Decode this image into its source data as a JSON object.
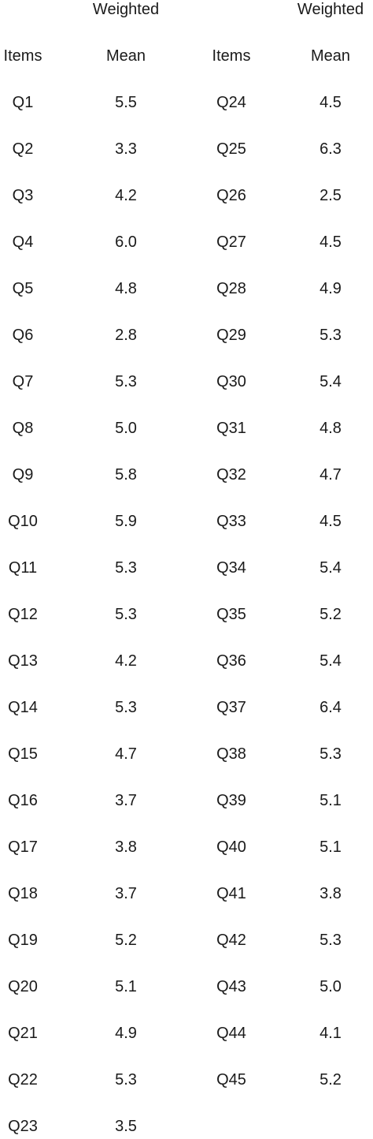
{
  "table": {
    "headers": {
      "items_1": "Items",
      "weighted_1": "Weighted",
      "mean_1": "Mean",
      "items_2": "Items",
      "weighted_2": "Weighted",
      "mean_2": "Mean"
    },
    "left_rows": [
      {
        "item": "Q1",
        "mean": "5.5"
      },
      {
        "item": "Q2",
        "mean": "3.3"
      },
      {
        "item": "Q3",
        "mean": "4.2"
      },
      {
        "item": "Q4",
        "mean": "6.0"
      },
      {
        "item": "Q5",
        "mean": "4.8"
      },
      {
        "item": "Q6",
        "mean": "2.8"
      },
      {
        "item": "Q7",
        "mean": "5.3"
      },
      {
        "item": "Q8",
        "mean": "5.0"
      },
      {
        "item": "Q9",
        "mean": "5.8"
      },
      {
        "item": "Q10",
        "mean": "5.9"
      },
      {
        "item": "Q11",
        "mean": "5.3"
      },
      {
        "item": "Q12",
        "mean": "5.3"
      },
      {
        "item": "Q13",
        "mean": "4.2"
      },
      {
        "item": "Q14",
        "mean": "5.3"
      },
      {
        "item": "Q15",
        "mean": "4.7"
      },
      {
        "item": "Q16",
        "mean": "3.7"
      },
      {
        "item": "Q17",
        "mean": "3.8"
      },
      {
        "item": "Q18",
        "mean": "3.7"
      },
      {
        "item": "Q19",
        "mean": "5.2"
      },
      {
        "item": "Q20",
        "mean": "5.1"
      },
      {
        "item": "Q21",
        "mean": "4.9"
      },
      {
        "item": "Q22",
        "mean": "5.3"
      },
      {
        "item": "Q23",
        "mean": "3.5"
      }
    ],
    "right_rows": [
      {
        "item": "Q24",
        "mean": "4.5"
      },
      {
        "item": "Q25",
        "mean": "6.3"
      },
      {
        "item": "Q26",
        "mean": "2.5"
      },
      {
        "item": "Q27",
        "mean": "4.5"
      },
      {
        "item": "Q28",
        "mean": "4.9"
      },
      {
        "item": "Q29",
        "mean": "5.3"
      },
      {
        "item": "Q30",
        "mean": "5.4"
      },
      {
        "item": "Q31",
        "mean": "4.8"
      },
      {
        "item": "Q32",
        "mean": "4.7"
      },
      {
        "item": "Q33",
        "mean": "4.5"
      },
      {
        "item": "Q34",
        "mean": "5.4"
      },
      {
        "item": "Q35",
        "mean": "5.2"
      },
      {
        "item": "Q36",
        "mean": "5.4"
      },
      {
        "item": "Q37",
        "mean": "6.4"
      },
      {
        "item": "Q38",
        "mean": "5.3"
      },
      {
        "item": "Q39",
        "mean": "5.1"
      },
      {
        "item": "Q40",
        "mean": "5.1"
      },
      {
        "item": "Q41",
        "mean": "3.8"
      },
      {
        "item": "Q42",
        "mean": "5.3"
      },
      {
        "item": "Q43",
        "mean": "5.0"
      },
      {
        "item": "Q44",
        "mean": "4.1"
      },
      {
        "item": "Q45",
        "mean": "5.2"
      }
    ]
  }
}
